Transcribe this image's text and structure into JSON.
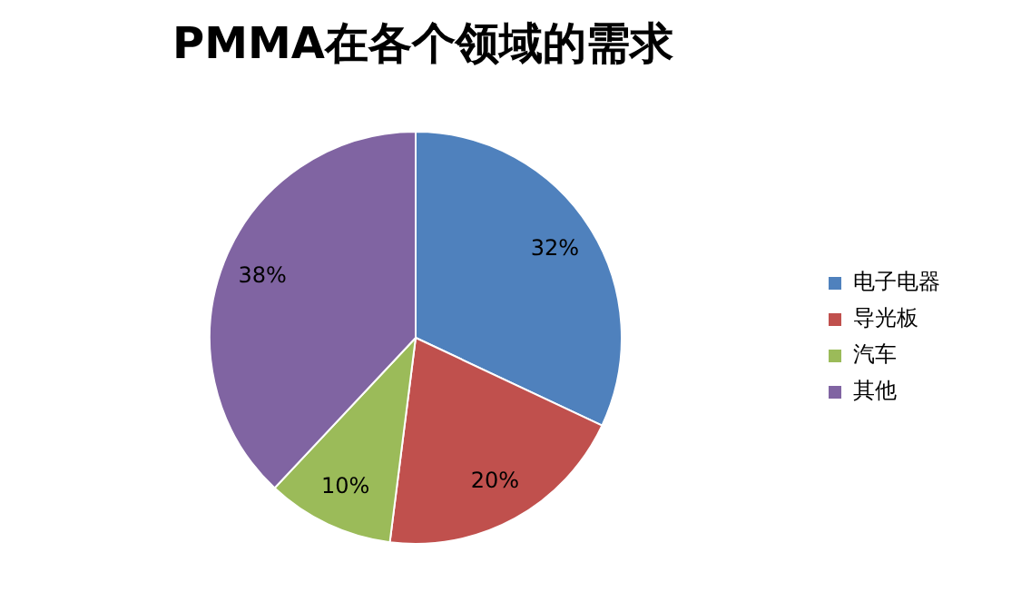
{
  "chart_data": {
    "type": "pie",
    "title": "PMMA在各个领域的需求",
    "categories": [
      "电子电器",
      "导光板",
      "汽车",
      "其他"
    ],
    "values": [
      32,
      20,
      10,
      38
    ],
    "colors": [
      "#4f81bd",
      "#c0504d",
      "#9bbb59",
      "#8064a2"
    ],
    "value_labels": [
      "32%",
      "20%",
      "10%",
      "38%"
    ],
    "legend": "right"
  }
}
